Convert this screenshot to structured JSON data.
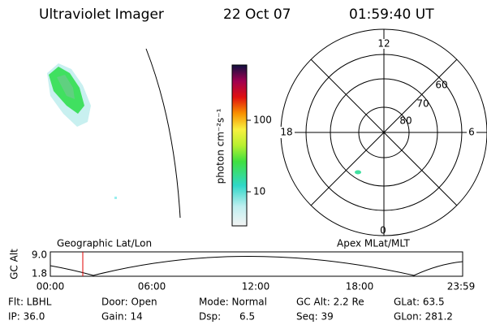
{
  "header": {
    "instrument": "Ultraviolet Imager",
    "date": "22 Oct 07",
    "time": "01:59:40 UT"
  },
  "colorbar": {
    "label": "photon cm⁻²s⁻¹",
    "ticks": [
      "100",
      "10"
    ]
  },
  "polar": {
    "hour_labels": [
      "12",
      "18",
      "6",
      "0"
    ],
    "lat_labels": [
      "60",
      "70",
      "80"
    ]
  },
  "orbit": {
    "axis_label": "GC Alt",
    "y_ticks": [
      "9.0",
      "1.8"
    ],
    "left_title": "Geographic Lat/Lon",
    "right_title": "Apex MLat/MLT",
    "time_ticks": [
      "00:00",
      "06:00",
      "12:00",
      "18:00",
      "23:59"
    ]
  },
  "info": {
    "rows": [
      [
        "Flt: LBHL",
        "Door: Open",
        "Mode: Normal",
        "GC Alt: 2.2 Re",
        "GLat: 63.5"
      ],
      [
        "IP: 36.0",
        "Gain: 14",
        "Dsp:      6.5",
        "Seq: 39",
        "GLon: 281.2"
      ]
    ]
  }
}
